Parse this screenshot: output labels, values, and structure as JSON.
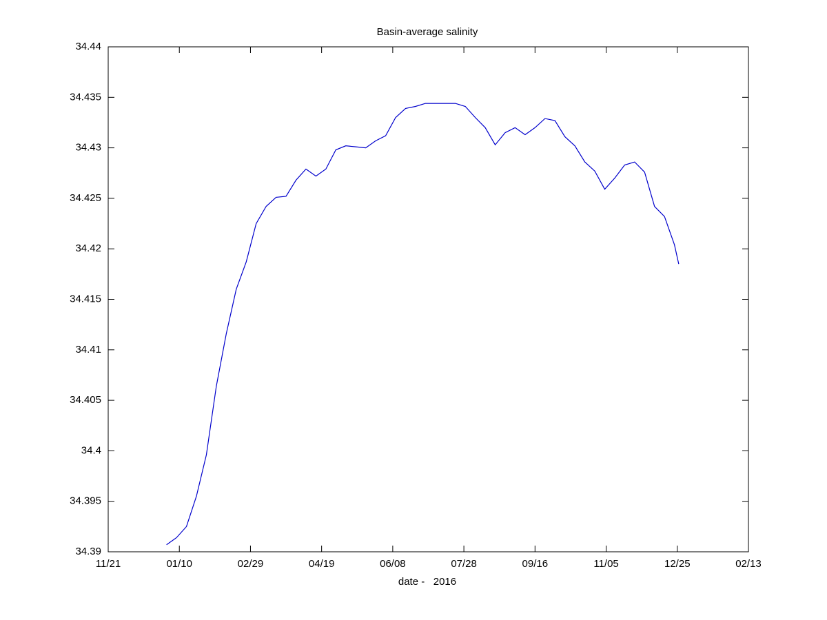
{
  "chart_data": {
    "type": "line",
    "title": "Basin-average salinity",
    "x_label": "date -   2016",
    "x": [
      "2016-01-01",
      "2016-01-08",
      "2016-01-15",
      "2016-01-22",
      "2016-01-29",
      "2016-02-05",
      "2016-02-12",
      "2016-02-19",
      "2016-02-26",
      "2016-03-04",
      "2016-03-11",
      "2016-03-18",
      "2016-03-25",
      "2016-04-01",
      "2016-04-08",
      "2016-04-15",
      "2016-04-22",
      "2016-04-29",
      "2016-05-06",
      "2016-05-13",
      "2016-05-20",
      "2016-05-27",
      "2016-06-03",
      "2016-06-10",
      "2016-06-17",
      "2016-06-24",
      "2016-07-01",
      "2016-07-08",
      "2016-07-15",
      "2016-07-22",
      "2016-07-29",
      "2016-08-05",
      "2016-08-12",
      "2016-08-19",
      "2016-08-26",
      "2016-09-02",
      "2016-09-09",
      "2016-09-16",
      "2016-09-23",
      "2016-09-30",
      "2016-10-07",
      "2016-10-14",
      "2016-10-21",
      "2016-10-28",
      "2016-11-04",
      "2016-11-11",
      "2016-11-18",
      "2016-11-25",
      "2016-12-02",
      "2016-12-09",
      "2016-12-16",
      "2016-12-23",
      "2016-12-26"
    ],
    "series": [
      {
        "color": "#0000cc",
        "values": [
          34.3907,
          34.3914,
          34.3925,
          34.3955,
          34.3996,
          34.4064,
          34.4116,
          34.416,
          34.4187,
          34.4225,
          34.4242,
          34.4251,
          34.4252,
          34.4268,
          34.4279,
          34.4272,
          34.4279,
          34.4298,
          34.4302,
          34.4301,
          34.43,
          34.4307,
          34.4312,
          34.433,
          34.4339,
          34.4341,
          34.4344,
          34.4344,
          34.4344,
          34.4344,
          34.4341,
          34.433,
          34.432,
          34.4303,
          34.4315,
          34.432,
          34.4313,
          34.432,
          34.4329,
          34.4327,
          34.4311,
          34.4302,
          34.4286,
          34.4277,
          34.4259,
          34.427,
          34.4283,
          34.4286,
          34.4276,
          34.4242,
          34.4232,
          34.4204,
          34.4185
        ]
      }
    ],
    "xlim": [
      "2015-11-21",
      "2017-02-13"
    ],
    "xticks": [
      {
        "value": "2015-11-21",
        "label": "11/21"
      },
      {
        "value": "2016-01-10",
        "label": "01/10"
      },
      {
        "value": "2016-02-29",
        "label": "02/29"
      },
      {
        "value": "2016-04-19",
        "label": "04/19"
      },
      {
        "value": "2016-06-08",
        "label": "06/08"
      },
      {
        "value": "2016-07-28",
        "label": "07/28"
      },
      {
        "value": "2016-09-16",
        "label": "09/16"
      },
      {
        "value": "2016-11-05",
        "label": "11/05"
      },
      {
        "value": "2016-12-25",
        "label": "12/25"
      },
      {
        "value": "2017-02-13",
        "label": "02/13"
      }
    ],
    "ylim": [
      34.39,
      34.44
    ],
    "yticks": [
      34.39,
      34.395,
      34.4,
      34.405,
      34.41,
      34.415,
      34.42,
      34.425,
      34.43,
      34.435,
      34.44
    ],
    "grid": false
  }
}
